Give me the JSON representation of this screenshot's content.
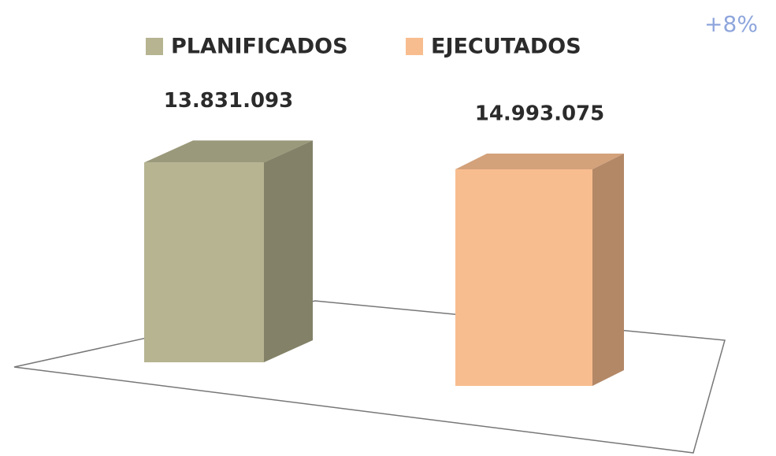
{
  "chart_data": {
    "type": "bar3d",
    "series": [
      {
        "name": "PLANIFICADOS",
        "color": "#b6b491",
        "values": [
          13831093
        ],
        "value_labels": [
          "13.831.093"
        ]
      },
      {
        "name": "EJECUTADOS",
        "color": "#f8bd8f",
        "values": [
          14993075
        ],
        "value_labels": [
          "14.993.075"
        ]
      }
    ],
    "annotation": "+8%"
  }
}
